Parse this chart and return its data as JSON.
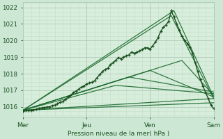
{
  "title": "",
  "xlabel": "Pression niveau de la mer( hPa )",
  "ylim": [
    1015.4,
    1022.3
  ],
  "yticks": [
    1016,
    1017,
    1018,
    1019,
    1020,
    1021,
    1022
  ],
  "xlim": [
    0,
    72
  ],
  "xtick_positions": [
    0,
    24,
    48,
    72
  ],
  "xtick_labels": [
    "Mer",
    "Jeu",
    "Ven",
    "Sam"
  ],
  "bg_color": "#cce8d4",
  "plot_bg_color": "#d8eedc",
  "grid_color_major": "#b0ccb8",
  "grid_color_minor": "#c4ddc8",
  "line_color": "#1e6b30",
  "line_color_main": "#1a5020"
}
